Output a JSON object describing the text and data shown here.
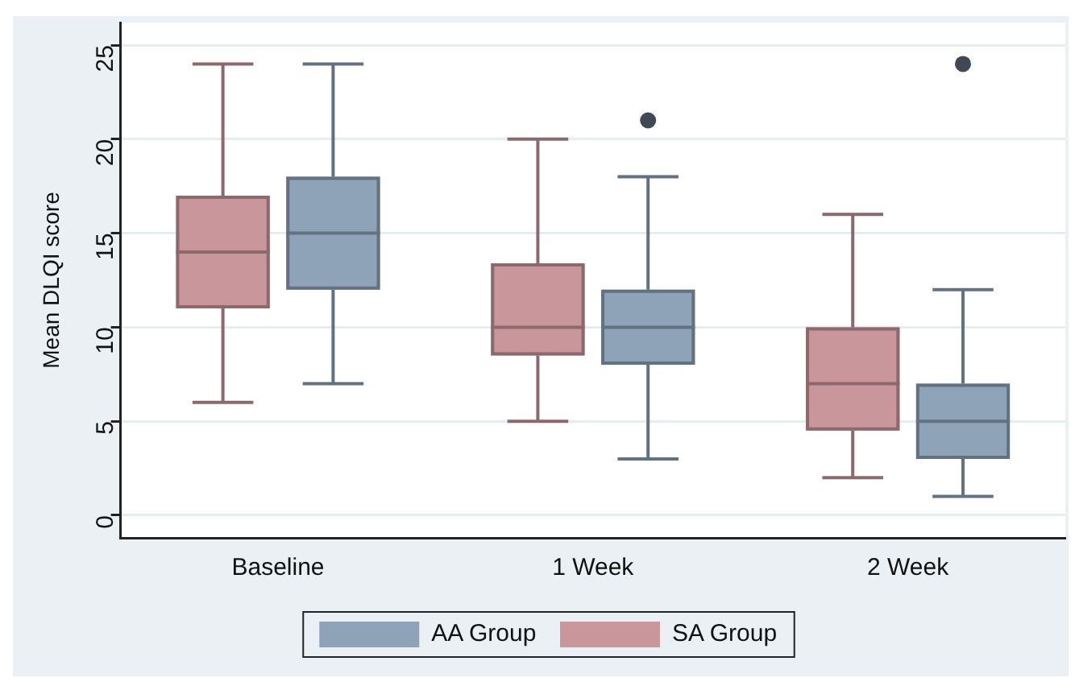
{
  "chart_data": {
    "type": "box",
    "ylabel": "Mean DLQI score",
    "categories": [
      "Baseline",
      "1 Week",
      "2 Week"
    ],
    "series": [
      {
        "name": "SA Group",
        "color": "#c8969b",
        "boxes": [
          {
            "low": 6,
            "q1": 11,
            "median": 14,
            "q3": 17,
            "high": 24
          },
          {
            "low": 5,
            "q1": 8.5,
            "median": 10,
            "q3": 13.4,
            "high": 20
          },
          {
            "low": 2,
            "q1": 4.5,
            "median": 7,
            "q3": 10,
            "high": 16
          }
        ]
      },
      {
        "name": "AA Group",
        "color": "#8ea3b8",
        "boxes": [
          {
            "low": 7,
            "q1": 12,
            "median": 15,
            "q3": 18,
            "high": 24
          },
          {
            "low": 3,
            "q1": 8,
            "median": 10,
            "q3": 12,
            "high": 18,
            "outliers": [
              21
            ]
          },
          {
            "low": 1,
            "q1": 3,
            "median": 5,
            "q3": 7,
            "high": 12,
            "outliers": [
              24
            ]
          }
        ]
      }
    ],
    "ylim": [
      -1.2,
      26.2
    ],
    "yticks": [
      0,
      5,
      10,
      15,
      20,
      25
    ],
    "grid": "y",
    "legend": "bottom"
  }
}
